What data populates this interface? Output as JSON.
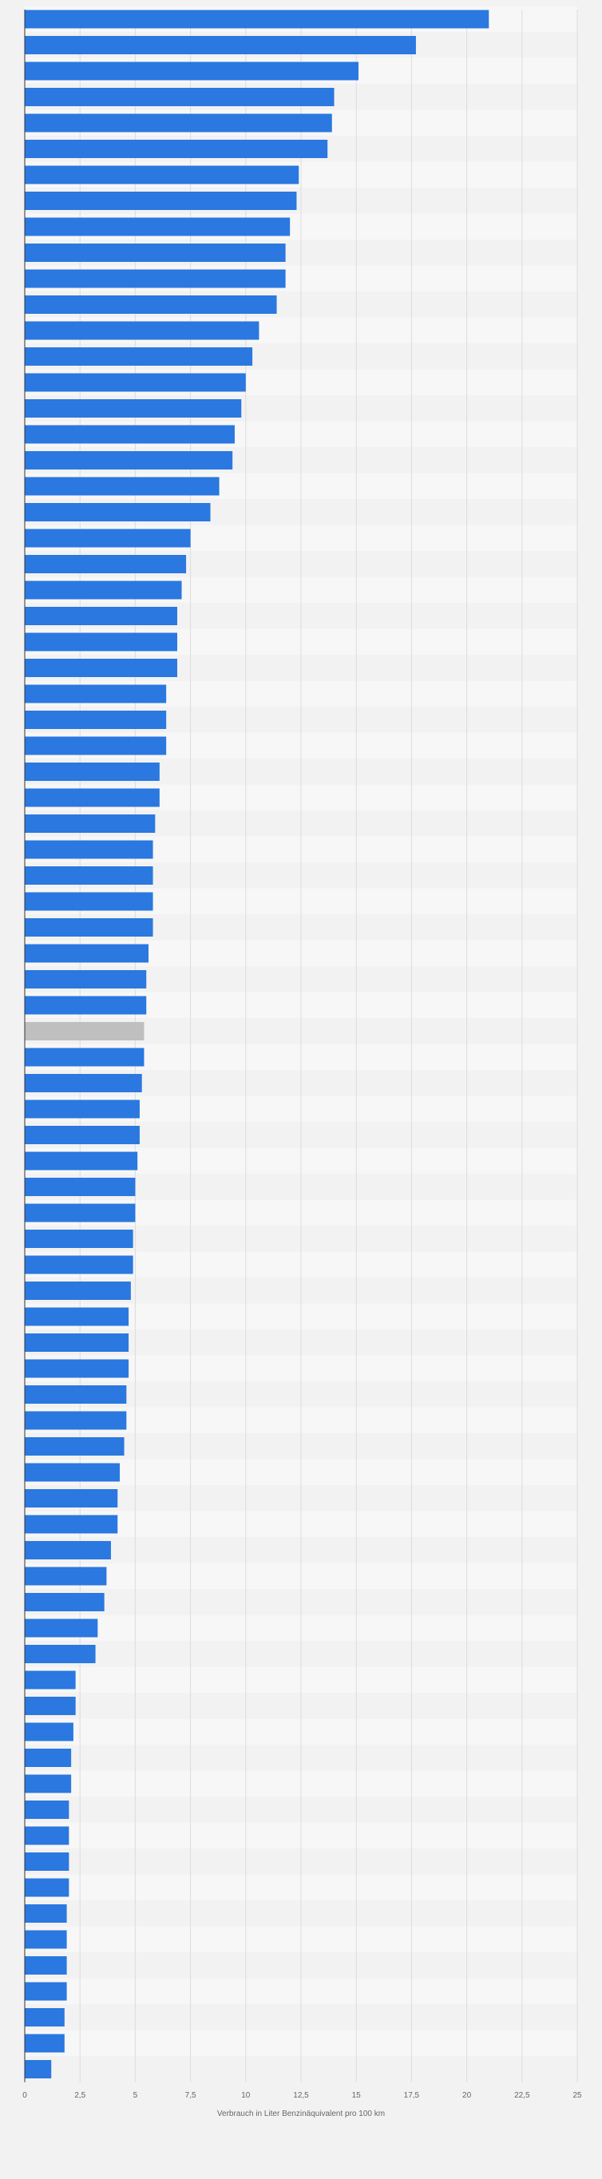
{
  "chart_data": {
    "type": "bar",
    "orientation": "horizontal",
    "title": "",
    "xlabel": "Verbrauch in Liter Benzinäquivalent pro 100 km",
    "ylabel": "",
    "xlim": [
      0,
      25
    ],
    "xticks": [
      "0",
      "2,5",
      "5",
      "7,5",
      "10",
      "12,5",
      "15",
      "17,5",
      "20",
      "22,5",
      "25"
    ],
    "grid": true,
    "legend": "none",
    "category_labels_visible": false,
    "colors": {
      "bar": "#2a78e0",
      "highlight": "#bfbfbf",
      "stripe_light": "#f7f7f7",
      "stripe_dark": "#f2f2f2",
      "grid": "#dcdcdc",
      "axis": "#333333"
    },
    "highlight_index": 39,
    "values": [
      21.0,
      17.7,
      15.1,
      14.0,
      13.9,
      13.7,
      12.4,
      12.3,
      12.0,
      11.8,
      11.8,
      11.4,
      10.6,
      10.3,
      10.0,
      9.8,
      9.5,
      9.4,
      8.8,
      8.4,
      7.5,
      7.3,
      7.1,
      6.9,
      6.9,
      6.9,
      6.4,
      6.4,
      6.4,
      6.1,
      6.1,
      5.9,
      5.8,
      5.8,
      5.8,
      5.8,
      5.6,
      5.5,
      5.5,
      5.4,
      5.4,
      5.3,
      5.2,
      5.2,
      5.1,
      5.0,
      5.0,
      4.9,
      4.9,
      4.8,
      4.7,
      4.7,
      4.7,
      4.6,
      4.6,
      4.5,
      4.3,
      4.2,
      4.2,
      3.9,
      3.7,
      3.6,
      3.3,
      3.2,
      2.3,
      2.3,
      2.2,
      2.1,
      2.1,
      2.0,
      2.0,
      2.0,
      2.0,
      1.9,
      1.9,
      1.9,
      1.9,
      1.8,
      1.8,
      1.2
    ]
  }
}
